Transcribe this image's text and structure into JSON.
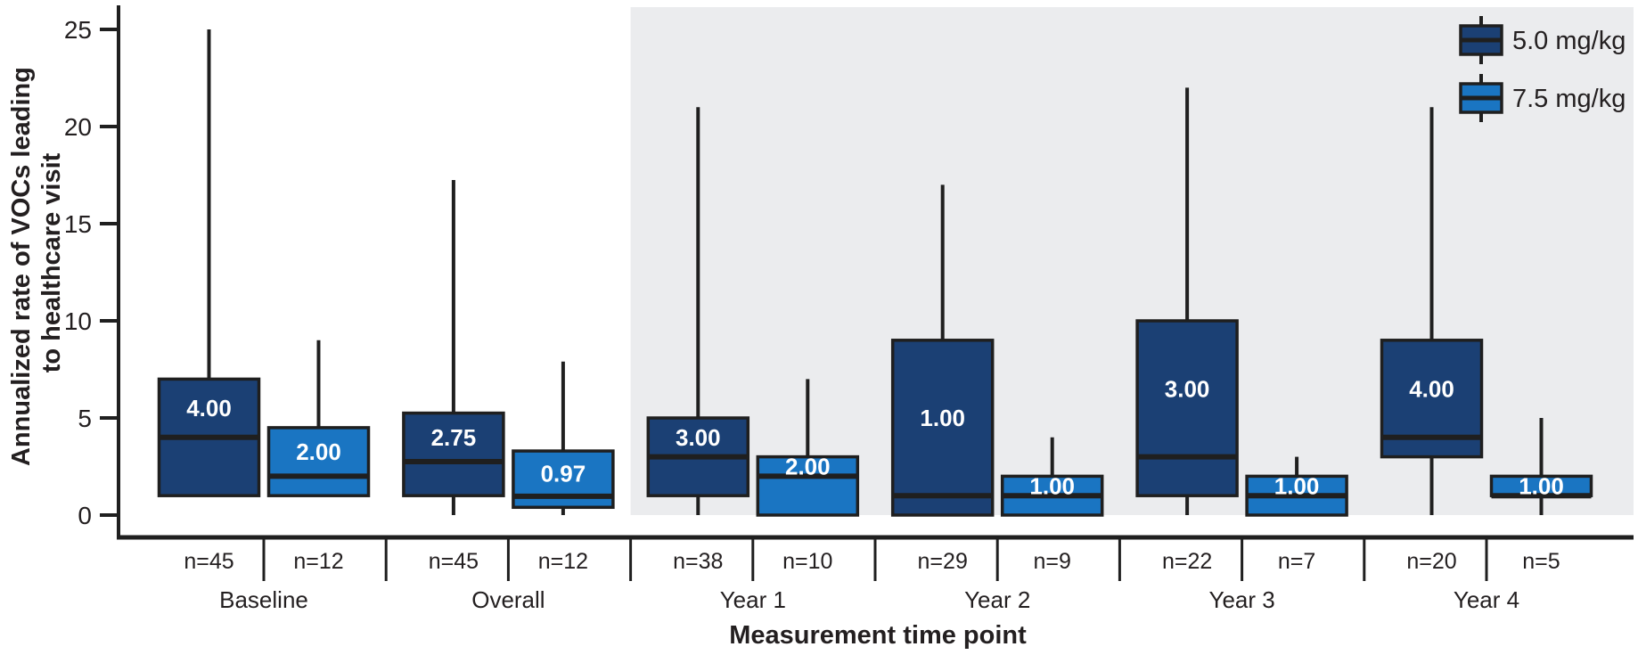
{
  "chart_data": {
    "type": "boxplot",
    "xlabel": "Measurement time point",
    "ylabel": "Annualized rate of VOCs leading to healthcare visit",
    "ylabel_lines": [
      "Annualized rate of VOCs leading",
      "to healthcare visit"
    ],
    "ylim": [
      0,
      25
    ],
    "yticks": [
      0,
      5,
      10,
      15,
      20,
      25
    ],
    "grid": "off",
    "categories": [
      "Baseline",
      "Overall",
      "Year 1",
      "Year 2",
      "Year 3",
      "Year 4"
    ],
    "shaded_region": {
      "from_category": "Year 1",
      "to_category": "Year 4",
      "color": "#ebecee"
    },
    "colors": {
      "dose_5mg": "#1b4074",
      "dose_7_5mg": "#1a75c2",
      "stroke": "#1f1f1f",
      "panel": "#ebecee",
      "text": "#231f20"
    },
    "legend": {
      "position": "top-right",
      "items": [
        {
          "label": "5.0 mg/kg",
          "color": "#1b4074"
        },
        {
          "label": "7.5 mg/kg",
          "color": "#1a75c2"
        }
      ]
    },
    "series": [
      {
        "name": "5.0 mg/kg",
        "color": "#1b4074",
        "boxes": [
          {
            "category": "Baseline",
            "n_label": "n=45",
            "whisker_low": 1,
            "q1": 1,
            "median": 4,
            "q3": 7,
            "whisker_high": 25,
            "median_label": "4.00"
          },
          {
            "category": "Overall",
            "n_label": "n=45",
            "whisker_low": 0,
            "q1": 1,
            "median": 2.75,
            "q3": 5.25,
            "whisker_high": 17.25,
            "median_label": "2.75"
          },
          {
            "category": "Year 1",
            "n_label": "n=38",
            "whisker_low": 0,
            "q1": 1,
            "median": 3,
            "q3": 5,
            "whisker_high": 21,
            "median_label": "3.00"
          },
          {
            "category": "Year 2",
            "n_label": "n=29",
            "whisker_low": 0,
            "q1": 0,
            "median": 1,
            "q3": 9,
            "whisker_high": 17,
            "median_label": "1.00"
          },
          {
            "category": "Year 3",
            "n_label": "n=22",
            "whisker_low": 0,
            "q1": 1,
            "median": 3,
            "q3": 10,
            "whisker_high": 22,
            "median_label": "3.00"
          },
          {
            "category": "Year 4",
            "n_label": "n=20",
            "whisker_low": 0,
            "q1": 3,
            "median": 4,
            "q3": 9,
            "whisker_high": 21,
            "median_label": "4.00"
          }
        ]
      },
      {
        "name": "7.5 mg/kg",
        "color": "#1a75c2",
        "boxes": [
          {
            "category": "Baseline",
            "n_label": "n=12",
            "whisker_low": 1,
            "q1": 1,
            "median": 2,
            "q3": 4.5,
            "whisker_high": 9,
            "median_label": "2.00"
          },
          {
            "category": "Overall",
            "n_label": "n=12",
            "whisker_low": 0,
            "q1": 0.4,
            "median": 0.97,
            "q3": 3.3,
            "whisker_high": 7.9,
            "median_label": "0.97"
          },
          {
            "category": "Year 1",
            "n_label": "n=10",
            "whisker_low": 0,
            "q1": 0,
            "median": 2,
            "q3": 3,
            "whisker_high": 7,
            "median_label": "2.00"
          },
          {
            "category": "Year 2",
            "n_label": "n=9",
            "whisker_low": 0,
            "q1": 0,
            "median": 1,
            "q3": 2,
            "whisker_high": 4,
            "median_label": "1.00"
          },
          {
            "category": "Year 3",
            "n_label": "n=7",
            "whisker_low": 0,
            "q1": 0,
            "median": 1,
            "q3": 2,
            "whisker_high": 3,
            "median_label": "1.00"
          },
          {
            "category": "Year 4",
            "n_label": "n=5",
            "whisker_low": 0,
            "q1": 1,
            "median": 1,
            "q3": 2,
            "whisker_high": 5,
            "median_label": "1.00"
          }
        ]
      }
    ]
  }
}
